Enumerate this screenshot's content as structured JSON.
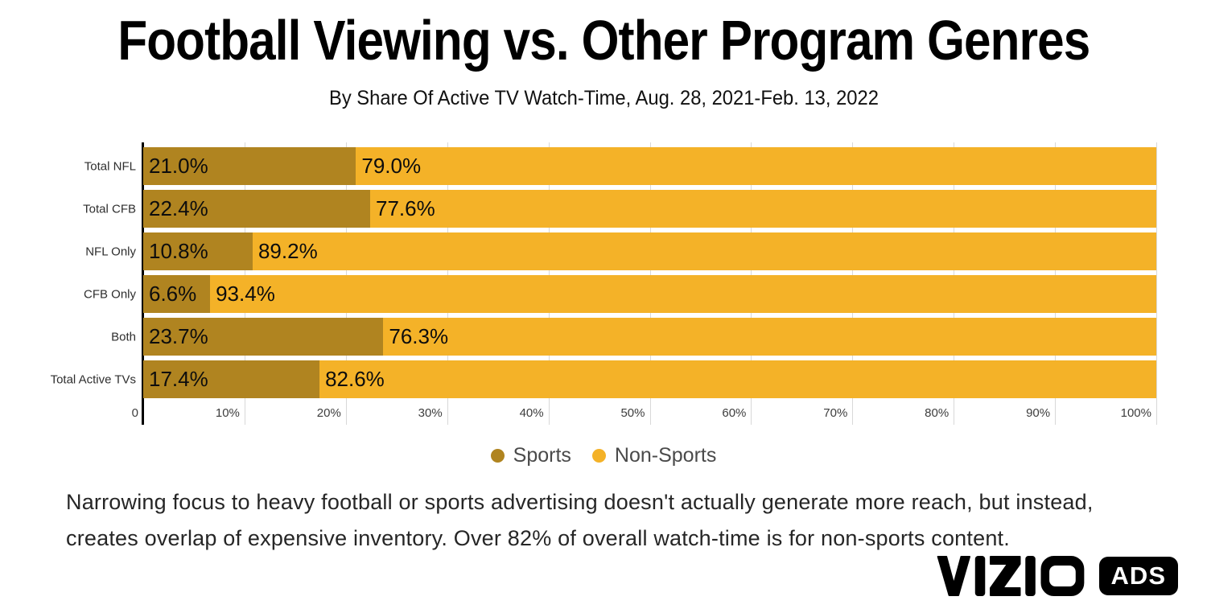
{
  "header": {
    "title": "Football Viewing vs. Other Program Genres",
    "subtitle": "By Share Of Active TV Watch-Time, Aug. 28, 2021-Feb. 13, 2022"
  },
  "chart_data": {
    "type": "bar",
    "orientation": "horizontal",
    "stacked": true,
    "title": "Football Viewing vs. Other Program Genres",
    "subtitle": "By Share Of Active TV Watch-Time, Aug. 28, 2021-Feb. 13, 2022",
    "categories": [
      "Total NFL",
      "Total CFB",
      "NFL Only",
      "CFB Only",
      "Both",
      "Total Active TVs"
    ],
    "series": [
      {
        "name": "Sports",
        "color": "#B08420",
        "values": [
          21.0,
          22.4,
          10.8,
          6.6,
          23.7,
          17.4
        ]
      },
      {
        "name": "Non-Sports",
        "color": "#F4B228",
        "values": [
          79.0,
          77.6,
          89.2,
          93.4,
          76.3,
          82.6
        ]
      }
    ],
    "value_label_format": "percent_one_decimal",
    "x_ticks": [
      "0",
      "10%",
      "20%",
      "30%",
      "40%",
      "50%",
      "60%",
      "70%",
      "80%",
      "90%",
      "100%"
    ],
    "xlim": [
      0,
      100
    ],
    "grid": true,
    "gridline_color": "#d8d8d8",
    "axis_color": "#000000",
    "legend_position": "bottom"
  },
  "legend": {
    "items": [
      {
        "label": "Sports",
        "color": "#B08420"
      },
      {
        "label": "Non-Sports",
        "color": "#F4B228"
      }
    ]
  },
  "footnote": {
    "lines": [
      "Narrowing focus to heavy football or sports advertising doesn't actually generate more reach, but instead,",
      "creates overlap of expensive inventory. Over 82% of overall watch-time is for non-sports content."
    ]
  },
  "logo": {
    "brand": "VIZIO",
    "badge": "ADS"
  }
}
